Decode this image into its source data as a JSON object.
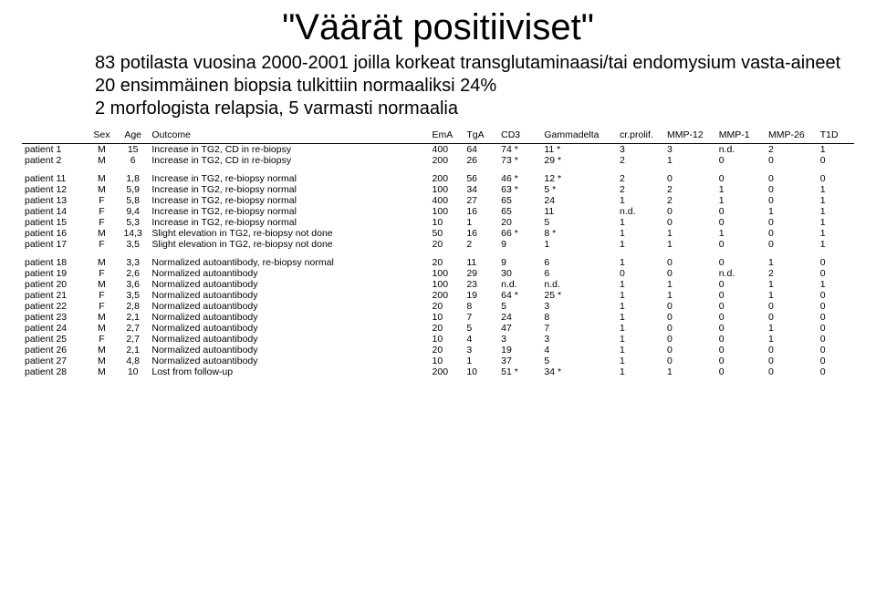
{
  "title": "\"Väärät positiiviset\"",
  "bullets": [
    "83 potilasta vuosina 2000-2001 joilla korkeat transglutaminaasi/tai endomysium vasta-aineet",
    "20 ensimmäinen biopsia tulkittiin normaaliksi 24%",
    "2 morfologista relapsia, 5 varmasti normaalia"
  ],
  "columns": [
    "",
    "Sex",
    "Age",
    "Outcome",
    "EmA",
    "TgA",
    "CD3",
    "Gammadelta",
    "cr.prolif.",
    "MMP-12",
    "MMP-1",
    "MMP-26",
    "T1D"
  ],
  "groups": [
    [
      [
        "patient 1",
        "M",
        "15",
        "Increase in TG2, CD in re-biopsy",
        "400",
        "64",
        "74 *",
        "11 *",
        "3",
        "3",
        "n.d.",
        "2",
        "1"
      ],
      [
        "patient 2",
        "M",
        "6",
        "Increase in TG2, CD in re-biopsy",
        "200",
        "26",
        "73 *",
        "29 *",
        "2",
        "1",
        "0",
        "0",
        "0"
      ]
    ],
    [
      [
        "patient 11",
        "M",
        "1,8",
        "Increase in TG2, re-biopsy normal",
        "200",
        "56",
        "46 *",
        "12 *",
        "2",
        "0",
        "0",
        "0",
        "0"
      ],
      [
        "patient 12",
        "M",
        "5,9",
        "Increase in TG2, re-biopsy normal",
        "100",
        "34",
        "63 *",
        "5 *",
        "2",
        "2",
        "1",
        "0",
        "1"
      ],
      [
        "patient 13",
        "F",
        "5,8",
        "Increase in TG2, re-biopsy normal",
        "400",
        "27",
        "65",
        "24",
        "1",
        "2",
        "1",
        "0",
        "1"
      ],
      [
        "patient 14",
        "F",
        "9,4",
        "Increase in TG2, re-biopsy normal",
        "100",
        "16",
        "65",
        "11",
        "n.d.",
        "0",
        "0",
        "1",
        "1"
      ],
      [
        "patient 15",
        "F",
        "5,3",
        "Increase in TG2, re-biopsy normal",
        "10",
        "1",
        "20",
        "5",
        "1",
        "0",
        "0",
        "0",
        "1"
      ],
      [
        "patient 16",
        "M",
        "14,3",
        "Slight elevation in TG2, re-biopsy not done",
        "50",
        "16",
        "66 *",
        "8 *",
        "1",
        "1",
        "1",
        "0",
        "1"
      ],
      [
        "patient 17",
        "F",
        "3,5",
        "Slight elevation in TG2, re-biopsy not done",
        "20",
        "2",
        "9",
        "1",
        "1",
        "1",
        "0",
        "0",
        "1"
      ]
    ],
    [
      [
        "patient 18",
        "M",
        "3,3",
        "Normalized autoantibody, re-biopsy normal",
        "20",
        "11",
        "9",
        "6",
        "1",
        "0",
        "0",
        "1",
        "0"
      ],
      [
        "patient 19",
        "F",
        "2,6",
        "Normalized autoantibody",
        "100",
        "29",
        "30",
        "6",
        "0",
        "0",
        "n.d.",
        "2",
        "0"
      ],
      [
        "patient 20",
        "M",
        "3,6",
        "Normalized autoantibody",
        "100",
        "23",
        "n.d.",
        "n.d.",
        "1",
        "1",
        "0",
        "1",
        "1"
      ],
      [
        "patient 21",
        "F",
        "3,5",
        "Normalized autoantibody",
        "200",
        "19",
        "64 *",
        "25 *",
        "1",
        "1",
        "0",
        "1",
        "0"
      ],
      [
        "patient 22",
        "F",
        "2,8",
        "Normalized autoantibody",
        "20",
        "8",
        "5",
        "3",
        "1",
        "0",
        "0",
        "0",
        "0"
      ],
      [
        "patient 23",
        "M",
        "2,1",
        "Normalized autoantibody",
        "10",
        "7",
        "24",
        "8",
        "1",
        "0",
        "0",
        "0",
        "0"
      ],
      [
        "patient 24",
        "M",
        "2,7",
        "Normalized autoantibody",
        "20",
        "5",
        "47",
        "7",
        "1",
        "0",
        "0",
        "1",
        "0"
      ],
      [
        "patient 25",
        "F",
        "2,7",
        "Normalized autoantibody",
        "10",
        "4",
        "3",
        "3",
        "1",
        "0",
        "0",
        "1",
        "0"
      ],
      [
        "patient 26",
        "M",
        "2,1",
        "Normalized autoantibody",
        "20",
        "3",
        "19",
        "4",
        "1",
        "0",
        "0",
        "0",
        "0"
      ],
      [
        "patient 27",
        "M",
        "4,8",
        "Normalized autoantibody",
        "10",
        "1",
        "37",
        "5",
        "1",
        "0",
        "0",
        "0",
        "0"
      ],
      [
        "patient 28",
        "M",
        "10",
        "Lost from follow-up",
        "200",
        "10",
        "51 *",
        "34 *",
        "1",
        "1",
        "0",
        "0",
        "0"
      ]
    ]
  ]
}
